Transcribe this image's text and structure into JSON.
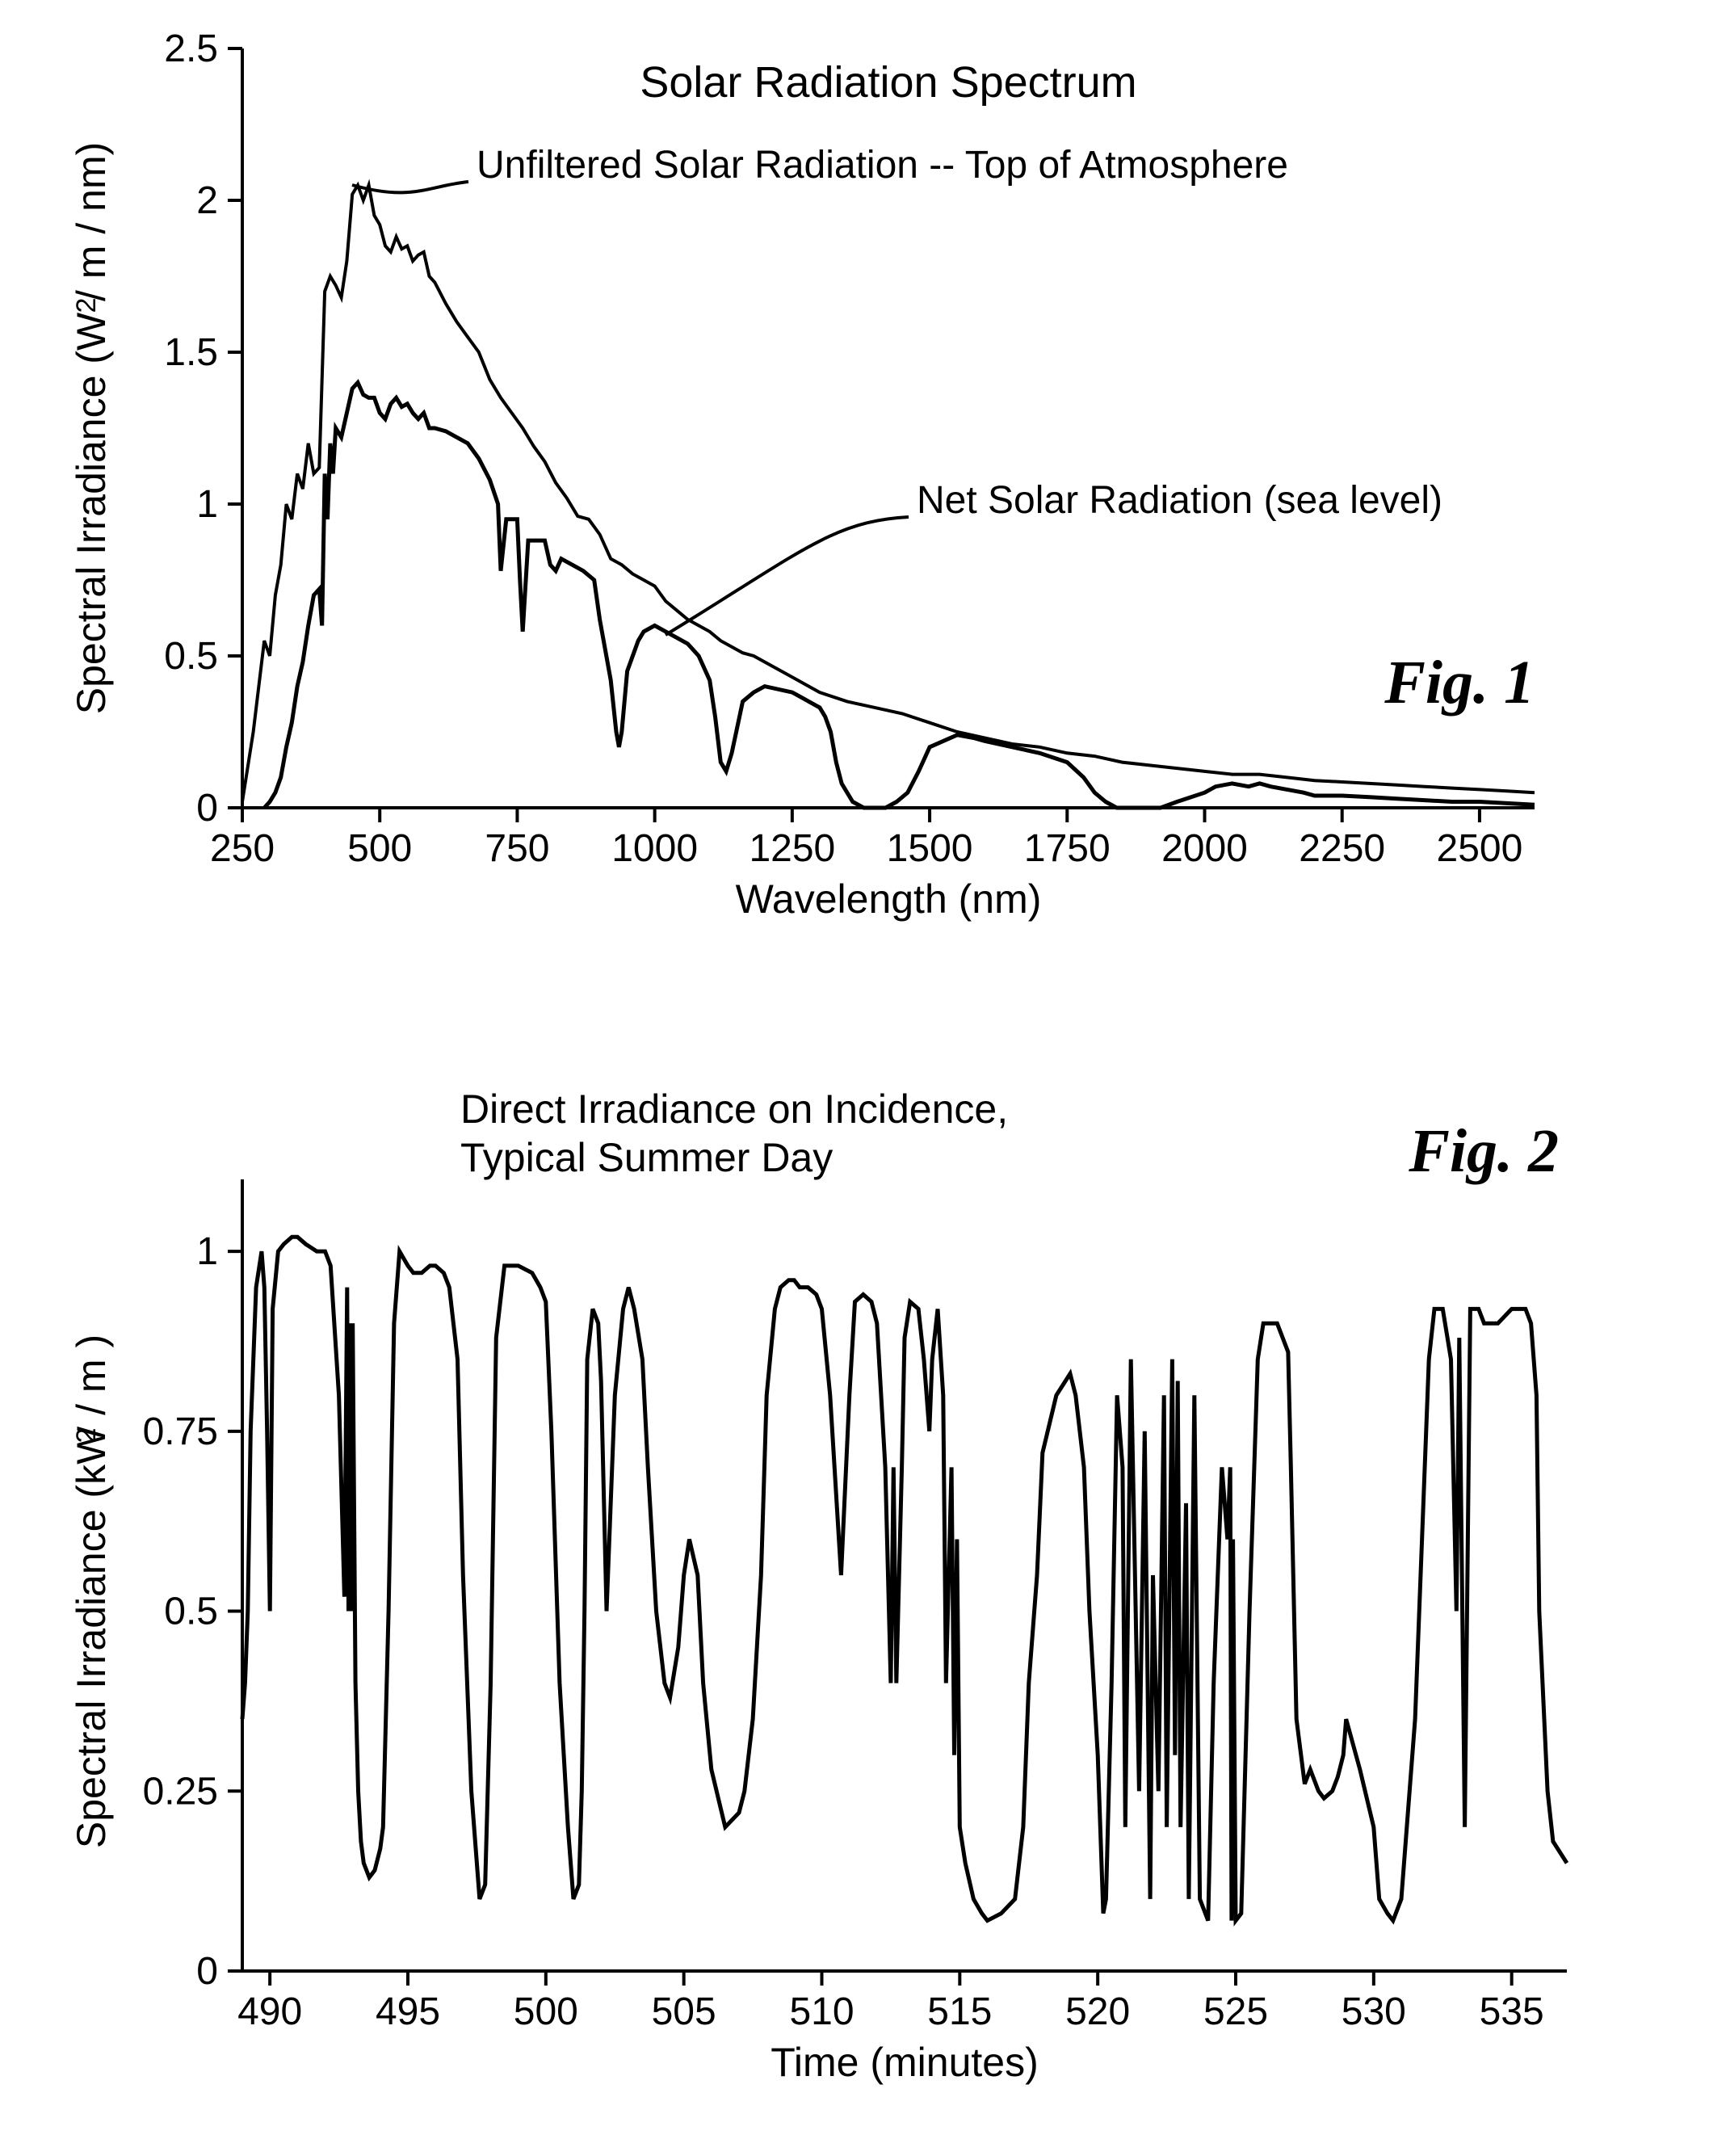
{
  "figure1": {
    "type": "line",
    "title": "Solar Radiation Spectrum",
    "title_fontsize": 54,
    "xlabel": "Wavelength  (nm)",
    "ylabel": "Spectral Irradiance  (W / m   / nm)",
    "ylabel_super": "2",
    "label_fontsize": 50,
    "tick_fontsize": 48,
    "fig_label": "Fig. 1",
    "fig_label_fontsize": 76,
    "xlim": [
      250,
      2600
    ],
    "ylim": [
      0,
      2.5
    ],
    "xtick_step": 250,
    "ytick_step": 0.5,
    "xtick_labels": [
      "250",
      "500",
      "750",
      "1000",
      "1250",
      "1500",
      "1750",
      "2000",
      "2250",
      "2500"
    ],
    "ytick_labels": [
      "0",
      "0.5",
      "1",
      "1.5",
      "2",
      "2.5"
    ],
    "line_width_top": 4,
    "line_width_sea": 5,
    "line_color": "#000000",
    "background_color": "#ffffff",
    "annotations": {
      "top_label": "Unfiltered Solar Radiation -- Top of Atmosphere",
      "sea_label": "Net Solar Radiation (sea level)",
      "annot_fontsize": 48
    },
    "series_top": {
      "x": [
        250,
        270,
        290,
        300,
        310,
        320,
        330,
        340,
        350,
        360,
        370,
        380,
        390,
        400,
        410,
        420,
        430,
        440,
        450,
        460,
        470,
        480,
        490,
        500,
        510,
        520,
        530,
        540,
        550,
        560,
        570,
        580,
        590,
        600,
        620,
        640,
        660,
        680,
        700,
        720,
        740,
        760,
        780,
        800,
        820,
        840,
        860,
        880,
        900,
        920,
        940,
        960,
        980,
        1000,
        1020,
        1040,
        1060,
        1080,
        1100,
        1120,
        1140,
        1160,
        1180,
        1200,
        1250,
        1300,
        1350,
        1400,
        1450,
        1500,
        1550,
        1600,
        1650,
        1700,
        1750,
        1800,
        1850,
        1900,
        1950,
        2000,
        2050,
        2100,
        2150,
        2200,
        2250,
        2300,
        2350,
        2400,
        2450,
        2500,
        2550,
        2600
      ],
      "y": [
        0.02,
        0.25,
        0.55,
        0.5,
        0.7,
        0.8,
        1.0,
        0.95,
        1.1,
        1.05,
        1.2,
        1.1,
        1.12,
        1.7,
        1.75,
        1.72,
        1.68,
        1.8,
        2.02,
        2.05,
        2.0,
        2.05,
        1.95,
        1.92,
        1.85,
        1.83,
        1.88,
        1.84,
        1.85,
        1.8,
        1.82,
        1.83,
        1.75,
        1.73,
        1.66,
        1.6,
        1.55,
        1.5,
        1.41,
        1.35,
        1.3,
        1.25,
        1.19,
        1.14,
        1.07,
        1.02,
        0.96,
        0.95,
        0.9,
        0.82,
        0.8,
        0.77,
        0.75,
        0.73,
        0.68,
        0.65,
        0.62,
        0.6,
        0.58,
        0.55,
        0.53,
        0.51,
        0.5,
        0.48,
        0.43,
        0.38,
        0.35,
        0.33,
        0.31,
        0.28,
        0.25,
        0.23,
        0.21,
        0.2,
        0.18,
        0.17,
        0.15,
        0.14,
        0.13,
        0.12,
        0.11,
        0.11,
        0.1,
        0.09,
        0.085,
        0.08,
        0.075,
        0.07,
        0.065,
        0.06,
        0.055,
        0.05
      ]
    },
    "series_sea": {
      "x": [
        290,
        300,
        310,
        320,
        330,
        340,
        350,
        360,
        370,
        380,
        390,
        395,
        400,
        405,
        410,
        415,
        420,
        430,
        440,
        450,
        460,
        470,
        480,
        490,
        500,
        510,
        520,
        530,
        540,
        550,
        560,
        570,
        580,
        590,
        600,
        620,
        640,
        660,
        680,
        700,
        715,
        720,
        730,
        750,
        755,
        760,
        770,
        800,
        810,
        820,
        830,
        850,
        870,
        890,
        900,
        920,
        930,
        935,
        940,
        950,
        960,
        970,
        980,
        1000,
        1020,
        1040,
        1060,
        1080,
        1100,
        1110,
        1120,
        1130,
        1140,
        1160,
        1180,
        1200,
        1250,
        1270,
        1290,
        1300,
        1310,
        1320,
        1330,
        1340,
        1360,
        1380,
        1400,
        1420,
        1440,
        1460,
        1480,
        1500,
        1550,
        1580,
        1600,
        1650,
        1700,
        1750,
        1780,
        1800,
        1820,
        1840,
        1860,
        1880,
        1900,
        1920,
        1950,
        2000,
        2020,
        2050,
        2080,
        2100,
        2120,
        2150,
        2180,
        2200,
        2250,
        2300,
        2350,
        2400,
        2450,
        2500,
        2550,
        2600
      ],
      "y": [
        0.0,
        0.02,
        0.05,
        0.1,
        0.2,
        0.28,
        0.4,
        0.48,
        0.6,
        0.7,
        0.72,
        0.6,
        1.1,
        0.95,
        1.2,
        1.1,
        1.25,
        1.22,
        1.3,
        1.38,
        1.4,
        1.36,
        1.35,
        1.35,
        1.3,
        1.28,
        1.33,
        1.35,
        1.32,
        1.33,
        1.3,
        1.28,
        1.3,
        1.25,
        1.25,
        1.24,
        1.22,
        1.2,
        1.15,
        1.08,
        1.0,
        0.78,
        0.95,
        0.95,
        0.75,
        0.58,
        0.88,
        0.88,
        0.8,
        0.78,
        0.82,
        0.8,
        0.78,
        0.75,
        0.62,
        0.42,
        0.25,
        0.2,
        0.25,
        0.45,
        0.5,
        0.55,
        0.58,
        0.6,
        0.58,
        0.56,
        0.54,
        0.5,
        0.42,
        0.3,
        0.15,
        0.12,
        0.18,
        0.35,
        0.38,
        0.4,
        0.38,
        0.36,
        0.34,
        0.33,
        0.3,
        0.25,
        0.15,
        0.08,
        0.02,
        0.0,
        0.0,
        0.0,
        0.02,
        0.05,
        0.12,
        0.2,
        0.24,
        0.23,
        0.22,
        0.2,
        0.18,
        0.15,
        0.1,
        0.05,
        0.02,
        0.0,
        0.0,
        0.0,
        0.0,
        0.0,
        0.02,
        0.05,
        0.07,
        0.08,
        0.07,
        0.08,
        0.07,
        0.06,
        0.05,
        0.04,
        0.04,
        0.035,
        0.03,
        0.025,
        0.02,
        0.02,
        0.015,
        0.01
      ]
    }
  },
  "figure2": {
    "type": "line",
    "title": "Direct Irradiance on Incidence,\nTypical Summer Day",
    "title_fontsize": 50,
    "xlabel": "Time (minutes)",
    "ylabel": "Spectral Irradiance  (kW / m   )",
    "ylabel_super": "2",
    "label_fontsize": 50,
    "tick_fontsize": 48,
    "fig_label": "Fig. 2",
    "fig_label_fontsize": 76,
    "xlim": [
      489,
      537
    ],
    "ylim": [
      0,
      1.1
    ],
    "xtick_step": 5,
    "ytick_step": 0.25,
    "ytick_max_label": 1.0,
    "xtick_labels": [
      "490",
      "495",
      "500",
      "505",
      "510",
      "515",
      "520",
      "525",
      "530",
      "535"
    ],
    "ytick_labels": [
      "0",
      "0.25",
      "0.5",
      "0.75",
      "1"
    ],
    "line_width": 5,
    "line_color": "#000000",
    "background_color": "#ffffff",
    "series": {
      "x": [
        489.0,
        489.1,
        489.2,
        489.3,
        489.5,
        489.7,
        489.8,
        489.9,
        490.0,
        490.1,
        490.3,
        490.5,
        490.8,
        491.0,
        491.3,
        491.7,
        492.0,
        492.2,
        492.5,
        492.7,
        492.8,
        492.85,
        492.9,
        492.95,
        493.0,
        493.1,
        493.2,
        493.3,
        493.4,
        493.6,
        493.8,
        494.0,
        494.1,
        494.3,
        494.5,
        494.7,
        495.0,
        495.2,
        495.5,
        495.8,
        496.0,
        496.3,
        496.5,
        496.8,
        497.0,
        497.3,
        497.5,
        497.6,
        497.8,
        498.0,
        498.2,
        498.5,
        499.0,
        499.5,
        499.8,
        500.0,
        500.2,
        500.5,
        500.8,
        501.0,
        501.2,
        501.3,
        501.4,
        501.5,
        501.7,
        501.9,
        502.0,
        502.2,
        502.5,
        502.8,
        503.0,
        503.2,
        503.5,
        503.7,
        504.0,
        504.3,
        504.5,
        504.8,
        505.0,
        505.2,
        505.5,
        505.7,
        506.0,
        506.5,
        507.0,
        507.2,
        507.5,
        507.8,
        508.0,
        508.3,
        508.5,
        508.8,
        509.0,
        509.2,
        509.5,
        509.8,
        510.0,
        510.3,
        510.7,
        511.0,
        511.2,
        511.5,
        511.8,
        512.0,
        512.3,
        512.5,
        512.6,
        512.7,
        512.9,
        513.0,
        513.2,
        513.5,
        513.7,
        513.9,
        514.0,
        514.2,
        514.4,
        514.5,
        514.7,
        514.8,
        514.9,
        515.0,
        515.2,
        515.5,
        515.8,
        516.0,
        516.5,
        517.0,
        517.3,
        517.5,
        517.8,
        518.0,
        518.5,
        519.0,
        519.2,
        519.5,
        519.7,
        520.0,
        520.2,
        520.3,
        520.5,
        520.7,
        520.9,
        521.0,
        521.2,
        521.5,
        521.7,
        521.9,
        522.0,
        522.2,
        522.4,
        522.5,
        522.7,
        522.8,
        522.9,
        523.0,
        523.2,
        523.3,
        523.5,
        523.7,
        524.0,
        524.2,
        524.5,
        524.7,
        524.8,
        524.85,
        524.9,
        525.0,
        525.2,
        525.5,
        525.8,
        526.0,
        526.3,
        526.5,
        526.7,
        526.9,
        527.0,
        527.2,
        527.5,
        527.7,
        528.0,
        528.2,
        528.5,
        528.7,
        528.9,
        529.0,
        529.5,
        530.0,
        530.2,
        530.5,
        530.7,
        531.0,
        531.5,
        532.0,
        532.2,
        532.5,
        532.8,
        533.0,
        533.1,
        533.3,
        533.5,
        533.8,
        534.0,
        534.5,
        535.0,
        535.5,
        535.7,
        535.9,
        536.0,
        536.3,
        536.5,
        537.0
      ],
      "y": [
        0.35,
        0.4,
        0.5,
        0.75,
        0.95,
        1.0,
        0.95,
        0.75,
        0.5,
        0.92,
        1.0,
        1.01,
        1.02,
        1.02,
        1.01,
        1.0,
        1.0,
        0.98,
        0.8,
        0.52,
        0.95,
        0.5,
        0.9,
        0.5,
        0.9,
        0.4,
        0.25,
        0.18,
        0.15,
        0.13,
        0.14,
        0.17,
        0.2,
        0.5,
        0.9,
        1.0,
        0.98,
        0.97,
        0.97,
        0.98,
        0.98,
        0.97,
        0.95,
        0.85,
        0.55,
        0.25,
        0.15,
        0.1,
        0.12,
        0.4,
        0.88,
        0.98,
        0.98,
        0.97,
        0.95,
        0.93,
        0.75,
        0.4,
        0.2,
        0.1,
        0.12,
        0.25,
        0.5,
        0.85,
        0.92,
        0.9,
        0.82,
        0.5,
        0.8,
        0.92,
        0.95,
        0.92,
        0.85,
        0.7,
        0.5,
        0.4,
        0.38,
        0.45,
        0.55,
        0.6,
        0.55,
        0.4,
        0.28,
        0.2,
        0.22,
        0.25,
        0.35,
        0.55,
        0.8,
        0.92,
        0.95,
        0.96,
        0.96,
        0.95,
        0.95,
        0.94,
        0.92,
        0.8,
        0.55,
        0.8,
        0.93,
        0.94,
        0.93,
        0.9,
        0.7,
        0.4,
        0.7,
        0.4,
        0.7,
        0.88,
        0.93,
        0.92,
        0.85,
        0.75,
        0.85,
        0.92,
        0.8,
        0.4,
        0.7,
        0.3,
        0.6,
        0.2,
        0.15,
        0.1,
        0.08,
        0.07,
        0.08,
        0.1,
        0.2,
        0.4,
        0.55,
        0.72,
        0.8,
        0.83,
        0.8,
        0.7,
        0.5,
        0.3,
        0.08,
        0.1,
        0.4,
        0.8,
        0.7,
        0.2,
        0.85,
        0.25,
        0.75,
        0.1,
        0.55,
        0.25,
        0.8,
        0.2,
        0.85,
        0.3,
        0.82,
        0.2,
        0.65,
        0.1,
        0.8,
        0.1,
        0.07,
        0.4,
        0.7,
        0.6,
        0.7,
        0.07,
        0.6,
        0.07,
        0.08,
        0.5,
        0.85,
        0.9,
        0.9,
        0.9,
        0.88,
        0.86,
        0.7,
        0.35,
        0.26,
        0.28,
        0.25,
        0.24,
        0.25,
        0.27,
        0.3,
        0.35,
        0.28,
        0.2,
        0.1,
        0.08,
        0.07,
        0.1,
        0.35,
        0.85,
        0.92,
        0.92,
        0.85,
        0.5,
        0.88,
        0.2,
        0.92,
        0.92,
        0.9,
        0.9,
        0.92,
        0.92,
        0.9,
        0.8,
        0.5,
        0.25,
        0.18,
        0.15
      ]
    }
  }
}
